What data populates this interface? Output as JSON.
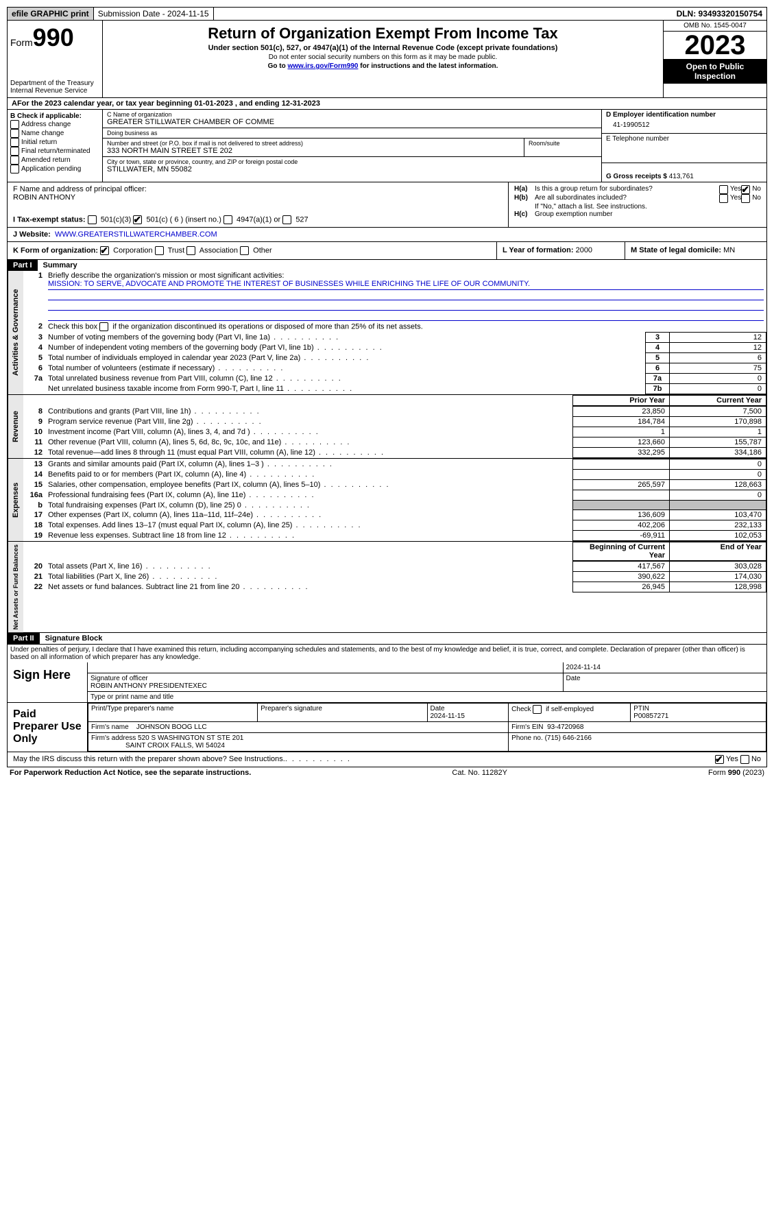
{
  "topbar": {
    "efile": "efile GRAPHIC print",
    "submission": "Submission Date - 2024-11-15",
    "dln": "DLN: 93493320150754"
  },
  "header": {
    "form_prefix": "Form",
    "form_no": "990",
    "dept": "Department of the Treasury Internal Revenue Service",
    "title": "Return of Organization Exempt From Income Tax",
    "sub": "Under section 501(c), 527, or 4947(a)(1) of the Internal Revenue Code (except private foundations)",
    "note1": "Do not enter social security numbers on this form as it may be made public.",
    "note2": "Go to www.irs.gov/Form990 for instructions and the latest information.",
    "note2_prefix": "Go to ",
    "note2_link": "www.irs.gov/Form990",
    "note2_suffix": " for instructions and the latest information.",
    "omb": "OMB No. 1545-0047",
    "year": "2023",
    "pubinsp": "Open to Public Inspection"
  },
  "line_a": "For the 2023 calendar year, or tax year beginning 01-01-2023   , and ending 12-31-2023",
  "box_b": {
    "label": "B Check if applicable:",
    "opts": [
      "Address change",
      "Name change",
      "Initial return",
      "Final return/terminated",
      "Amended return",
      "Application pending"
    ]
  },
  "box_c": {
    "name_lbl": "C Name of organization",
    "name": "GREATER STILLWATER CHAMBER OF COMME",
    "dba_lbl": "Doing business as",
    "dba": "",
    "street_lbl": "Number and street (or P.O. box if mail is not delivered to street address)",
    "street": "333 NORTH MAIN STREET STE 202",
    "room_lbl": "Room/suite",
    "city_lbl": "City or town, state or province, country, and ZIP or foreign postal code",
    "city": "STILLWATER, MN  55082"
  },
  "box_d": {
    "ein_lbl": "D Employer identification number",
    "ein": "41-1990512",
    "phone_lbl": "E Telephone number",
    "phone": "",
    "gross_lbl": "G Gross receipts $",
    "gross": "413,761"
  },
  "box_f": {
    "lbl": "F  Name and address of principal officer:",
    "name": "ROBIN ANTHONY"
  },
  "box_h": {
    "a_lbl": "H(a)  Is this a group return for subordinates?",
    "a_yes": "Yes",
    "a_no": "No",
    "a_checked": "no",
    "b_lbl": "H(b)  Are all subordinates included?",
    "b_yes": "Yes",
    "b_no": "No",
    "b_note": "If \"No,\" attach a list. See instructions.",
    "c_lbl": "H(c)  Group exemption number"
  },
  "line_i": {
    "lbl": "I   Tax-exempt status:",
    "o1": "501(c)(3)",
    "o2": "501(c) ( 6 ) (insert no.)",
    "o3": "4947(a)(1) or",
    "o4": "527",
    "checked": 2
  },
  "line_j": {
    "lbl": "J   Website:",
    "val": "WWW.GREATERSTILLWATERCHAMBER.COM"
  },
  "line_k": {
    "lbl": "K Form of organization:",
    "o1": "Corporation",
    "o2": "Trust",
    "o3": "Association",
    "o4": "Other",
    "checked": 1
  },
  "line_l": {
    "lbl": "L Year of formation:",
    "val": "2000"
  },
  "line_m": {
    "lbl": "M State of legal domicile:",
    "val": "MN"
  },
  "part1": {
    "hdr": "Part I",
    "title": "Summary",
    "l1_lbl": "Briefly describe the organization's mission or most significant activities:",
    "l1_val": "MISSION: TO SERVE, ADVOCATE AND PROMOTE THE INTEREST OF BUSINESSES WHILE ENRICHING THE LIFE OF OUR COMMUNITY.",
    "l2": "Check this box      if the organization discontinued its operations or disposed of more than 25% of its net assets.",
    "rows_gov": [
      {
        "n": "3",
        "d": "Number of voting members of the governing body (Part VI, line 1a)",
        "b": "3",
        "v": "12"
      },
      {
        "n": "4",
        "d": "Number of independent voting members of the governing body (Part VI, line 1b)",
        "b": "4",
        "v": "12"
      },
      {
        "n": "5",
        "d": "Total number of individuals employed in calendar year 2023 (Part V, line 2a)",
        "b": "5",
        "v": "6"
      },
      {
        "n": "6",
        "d": "Total number of volunteers (estimate if necessary)",
        "b": "6",
        "v": "75"
      },
      {
        "n": "7a",
        "d": "Total unrelated business revenue from Part VIII, column (C), line 12",
        "b": "7a",
        "v": "0"
      },
      {
        "n": "",
        "d": "Net unrelated business taxable income from Form 990-T, Part I, line 11",
        "b": "7b",
        "v": "0"
      }
    ],
    "col_prior": "Prior Year",
    "col_curr": "Current Year",
    "rows_rev": [
      {
        "n": "8",
        "d": "Contributions and grants (Part VIII, line 1h)",
        "p": "23,850",
        "c": "7,500"
      },
      {
        "n": "9",
        "d": "Program service revenue (Part VIII, line 2g)",
        "p": "184,784",
        "c": "170,898"
      },
      {
        "n": "10",
        "d": "Investment income (Part VIII, column (A), lines 3, 4, and 7d )",
        "p": "1",
        "c": "1"
      },
      {
        "n": "11",
        "d": "Other revenue (Part VIII, column (A), lines 5, 6d, 8c, 9c, 10c, and 11e)",
        "p": "123,660",
        "c": "155,787"
      },
      {
        "n": "12",
        "d": "Total revenue—add lines 8 through 11 (must equal Part VIII, column (A), line 12)",
        "p": "332,295",
        "c": "334,186"
      }
    ],
    "rows_exp": [
      {
        "n": "13",
        "d": "Grants and similar amounts paid (Part IX, column (A), lines 1–3 )",
        "p": "",
        "c": "0"
      },
      {
        "n": "14",
        "d": "Benefits paid to or for members (Part IX, column (A), line 4)",
        "p": "",
        "c": "0"
      },
      {
        "n": "15",
        "d": "Salaries, other compensation, employee benefits (Part IX, column (A), lines 5–10)",
        "p": "265,597",
        "c": "128,663"
      },
      {
        "n": "16a",
        "d": "Professional fundraising fees (Part IX, column (A), line 11e)",
        "p": "",
        "c": "0"
      },
      {
        "n": "b",
        "d": "Total fundraising expenses (Part IX, column (D), line 25) 0",
        "p": "shade",
        "c": "shade"
      },
      {
        "n": "17",
        "d": "Other expenses (Part IX, column (A), lines 11a–11d, 11f–24e)",
        "p": "136,609",
        "c": "103,470"
      },
      {
        "n": "18",
        "d": "Total expenses. Add lines 13–17 (must equal Part IX, column (A), line 25)",
        "p": "402,206",
        "c": "232,133"
      },
      {
        "n": "19",
        "d": "Revenue less expenses. Subtract line 18 from line 12",
        "p": "-69,911",
        "c": "102,053"
      }
    ],
    "col_beg": "Beginning of Current Year",
    "col_end": "End of Year",
    "rows_net": [
      {
        "n": "20",
        "d": "Total assets (Part X, line 16)",
        "p": "417,567",
        "c": "303,028"
      },
      {
        "n": "21",
        "d": "Total liabilities (Part X, line 26)",
        "p": "390,622",
        "c": "174,030"
      },
      {
        "n": "22",
        "d": "Net assets or fund balances. Subtract line 21 from line 20",
        "p": "26,945",
        "c": "128,998"
      }
    ],
    "vlabels": {
      "gov": "Activities & Governance",
      "rev": "Revenue",
      "exp": "Expenses",
      "net": "Net Assets or Fund Balances"
    }
  },
  "part2": {
    "hdr": "Part II",
    "title": "Signature Block",
    "decl": "Under penalties of perjury, I declare that I have examined this return, including accompanying schedules and statements, and to the best of my knowledge and belief, it is true, correct, and complete. Declaration of preparer (other than officer) is based on all information of which preparer has any knowledge.",
    "sign_here": "Sign Here",
    "sig_date": "2024-11-14",
    "sig_lbl": "Signature of officer",
    "sig_name": "ROBIN ANTHONY  PRESIDENTEXEC",
    "sig_type_lbl": "Type or print name and title",
    "date_lbl": "Date",
    "paid": "Paid Preparer Use Only",
    "prep_name_lbl": "Print/Type preparer's name",
    "prep_sig_lbl": "Preparer's signature",
    "prep_date_lbl": "Date",
    "prep_date": "2024-11-15",
    "self_lbl": "Check       if self-employed",
    "ptin_lbl": "PTIN",
    "ptin": "P00857271",
    "firm_name_lbl": "Firm's name",
    "firm_name": "JOHNSON BOOG LLC",
    "firm_ein_lbl": "Firm's EIN",
    "firm_ein": "93-4720968",
    "firm_addr_lbl": "Firm's address",
    "firm_addr1": "520 S WASHINGTON ST STE 201",
    "firm_addr2": "SAINT CROIX FALLS, WI  54024",
    "phone_lbl": "Phone no.",
    "phone": "(715) 646-2166",
    "discuss": "May the IRS discuss this return with the preparer shown above? See Instructions.",
    "yes": "Yes",
    "no": "No"
  },
  "footer": {
    "pra": "For Paperwork Reduction Act Notice, see the separate instructions.",
    "cat": "Cat. No. 11282Y",
    "form": "Form 990 (2023)"
  }
}
